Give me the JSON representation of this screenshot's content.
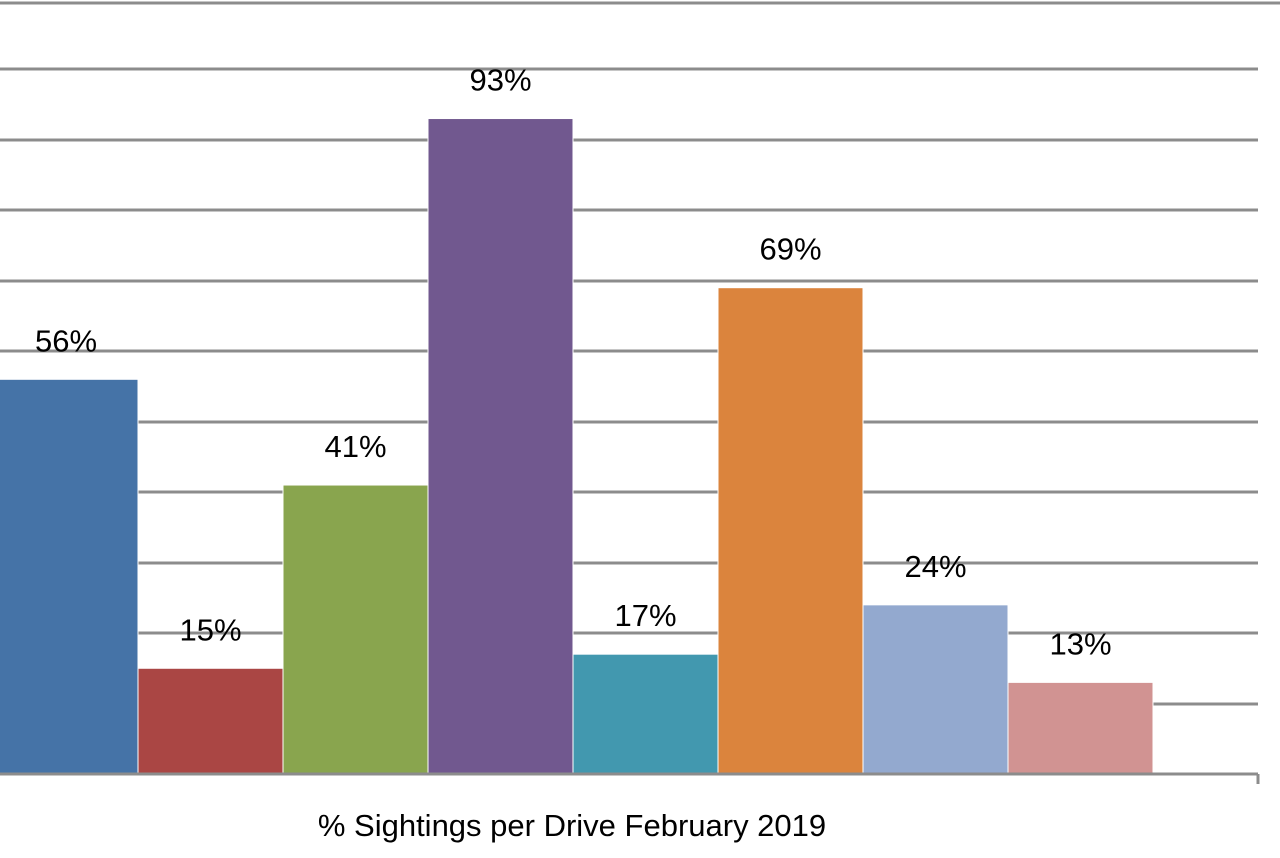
{
  "chart_data": {
    "type": "bar",
    "title": "",
    "xlabel": "% Sightings per Drive February 2019",
    "ylabel": "",
    "ylim": [
      0,
      100
    ],
    "grid": true,
    "legend": "none",
    "categories": [
      "",
      "",
      "",
      "",
      "",
      "",
      "",
      ""
    ],
    "values": [
      56,
      15,
      41,
      93,
      17,
      69,
      24,
      13
    ],
    "labels": [
      "56%",
      "15%",
      "41%",
      "93%",
      "17%",
      "69%",
      "24%",
      "13%"
    ],
    "colors": [
      "#4573a7",
      "#aa4644",
      "#89a54e",
      "#71588f",
      "#4298af",
      "#db843d",
      "#93a9cf",
      "#d19392"
    ]
  }
}
